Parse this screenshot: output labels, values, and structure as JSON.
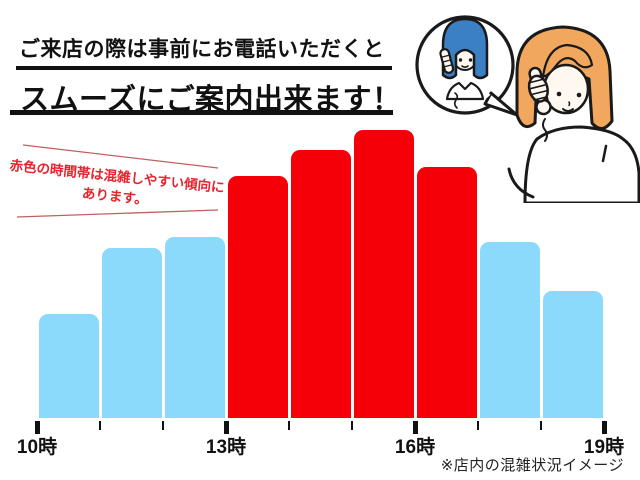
{
  "header": {
    "line1": "ご来店の際は事前にお電話いただくと",
    "line2": "スムーズにご案内出来ます！"
  },
  "annotation": {
    "line1": "赤色の時間帯は混雑しやすい傾向に",
    "line2": "あります。",
    "text_color": "#e8232d",
    "line_color": "#c0615e"
  },
  "footer": {
    "note": "※店内の混雑状況イメージ"
  },
  "illustration": {
    "name": "phone-call-between-customer-and-staff",
    "staff_hair_color": "#3b7fc4",
    "customer_hair_color": "#f2a75f",
    "skin_color": "#fff8f0",
    "outline_color": "#1a1a1a"
  },
  "colors": {
    "busy": "#f50008",
    "quiet": "#8bd9fb",
    "ink": "#111111"
  },
  "chart_data": {
    "type": "bar",
    "title": "店内の混雑状況イメージ",
    "categories": [
      "10-11時",
      "11-12時",
      "12-13時",
      "13-14時",
      "14-15時",
      "15-16時",
      "16-17時",
      "17-18時",
      "18-19時"
    ],
    "values": [
      36,
      59,
      63,
      84,
      93,
      100,
      87,
      61,
      44
    ],
    "colors": [
      "#8bd9fb",
      "#8bd9fb",
      "#8bd9fb",
      "#f50008",
      "#f50008",
      "#f50008",
      "#f50008",
      "#8bd9fb",
      "#8bd9fb"
    ],
    "busy": [
      false,
      false,
      false,
      true,
      true,
      true,
      true,
      false,
      false
    ],
    "x_tick_labels": [
      "10時",
      "",
      "",
      "13時",
      "",
      "",
      "16時",
      "",
      "",
      "19時"
    ],
    "xlabel": "",
    "ylabel": "",
    "ylim": [
      0,
      100
    ],
    "y_axis_visible": false,
    "grid": false,
    "legend": "none"
  }
}
